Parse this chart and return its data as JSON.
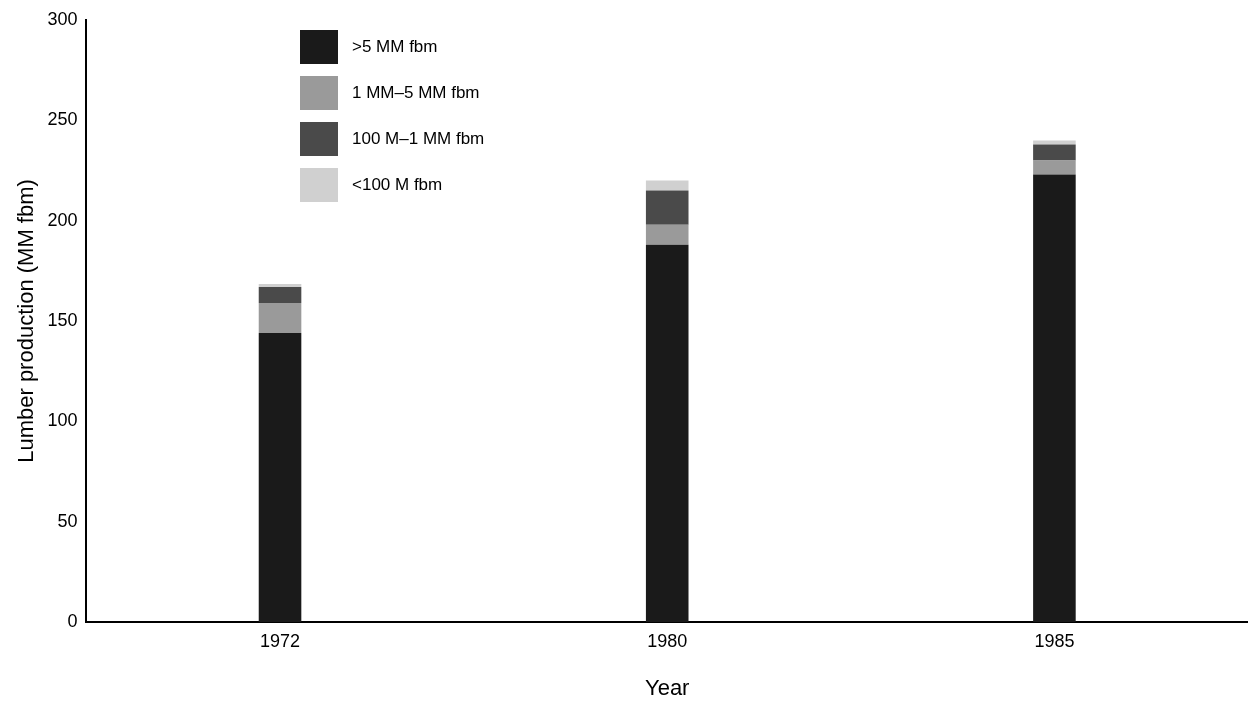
{
  "chart_data": {
    "type": "bar",
    "stacked": true,
    "xlabel": "Year",
    "ylabel": "Lumber production (MM fbm)",
    "categories": [
      "1972",
      "1980",
      "1985"
    ],
    "series": [
      {
        "name": ">5 MM fbm",
        "color": "#1a1a1a",
        "values": [
          144,
          188,
          223
        ]
      },
      {
        "name": "1 MM–5 MM fbm",
        "color": "#9a9a9a",
        "values": [
          15,
          10,
          7
        ]
      },
      {
        "name": "100 M–1 MM fbm",
        "color": "#4a4a4a",
        "values": [
          8,
          17,
          8
        ]
      },
      {
        "name": "<100 M fbm",
        "color": "#d0d0d0",
        "values": [
          1.5,
          5,
          2
        ]
      }
    ],
    "ylim": [
      0,
      300
    ],
    "yticks": [
      0,
      50,
      100,
      150,
      200,
      250,
      300
    ],
    "grid": false,
    "legend": "top left"
  }
}
